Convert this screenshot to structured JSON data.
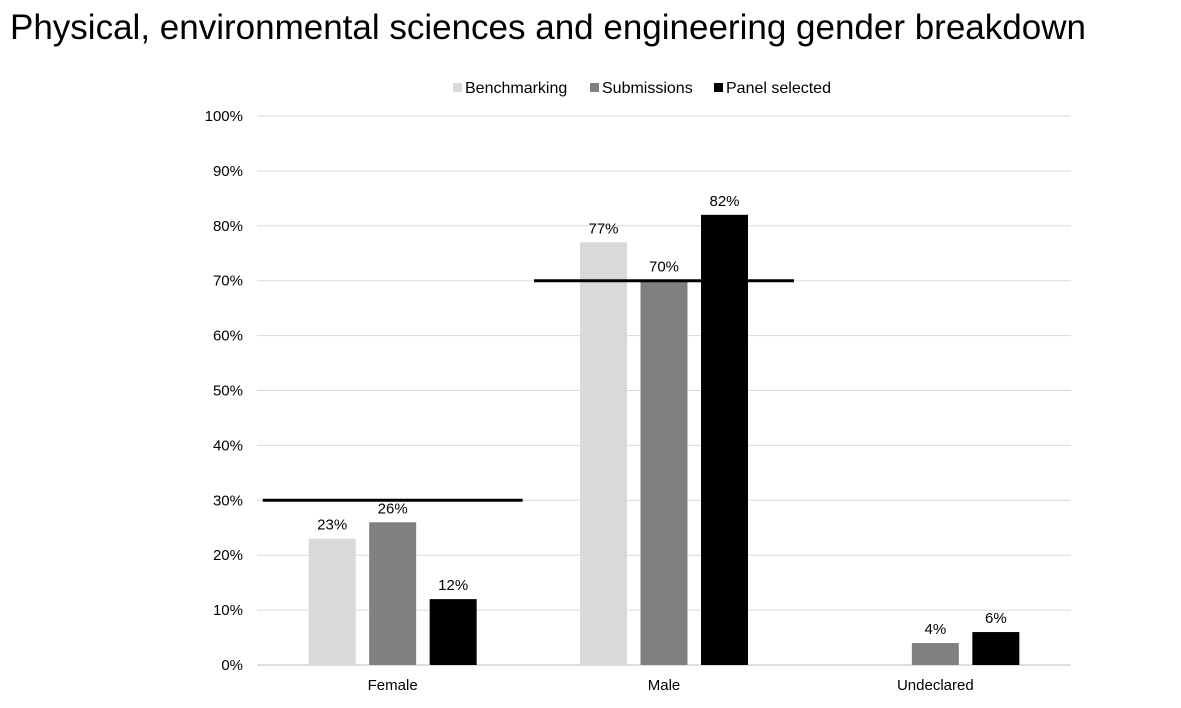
{
  "chart_data": {
    "type": "bar",
    "title": "Physical, environmental sciences and engineering gender breakdown",
    "categories": [
      "Female",
      "Male",
      "Undeclared"
    ],
    "series": [
      {
        "name": "Benchmarking",
        "values": [
          23,
          77,
          null
        ],
        "labels": [
          "23%",
          "77%",
          ""
        ],
        "color": "#d9d9d9"
      },
      {
        "name": "Submissions",
        "values": [
          26,
          70,
          4
        ],
        "labels": [
          "26%",
          "70%",
          "4%"
        ],
        "color": "#808080"
      },
      {
        "name": "Panel selected",
        "values": [
          12,
          82,
          6
        ],
        "labels": [
          "12%",
          "82%",
          "6%"
        ],
        "color": "#000000"
      }
    ],
    "reference_lines": [
      {
        "category": "Female",
        "value": 30
      },
      {
        "category": "Male",
        "value": 70
      }
    ],
    "y_ticks": [
      {
        "value": 0,
        "label": "0%"
      },
      {
        "value": 10,
        "label": "10%"
      },
      {
        "value": 20,
        "label": "20%"
      },
      {
        "value": 30,
        "label": "30%"
      },
      {
        "value": 40,
        "label": "40%"
      },
      {
        "value": 50,
        "label": "50%"
      },
      {
        "value": 60,
        "label": "60%"
      },
      {
        "value": 70,
        "label": "70%"
      },
      {
        "value": 80,
        "label": "80%"
      },
      {
        "value": 90,
        "label": "90%"
      },
      {
        "value": 100,
        "label": "100%"
      }
    ],
    "ylim": [
      0,
      100
    ],
    "xlabel": "",
    "ylabel": "",
    "grid": true,
    "legend_position": "top-center"
  }
}
